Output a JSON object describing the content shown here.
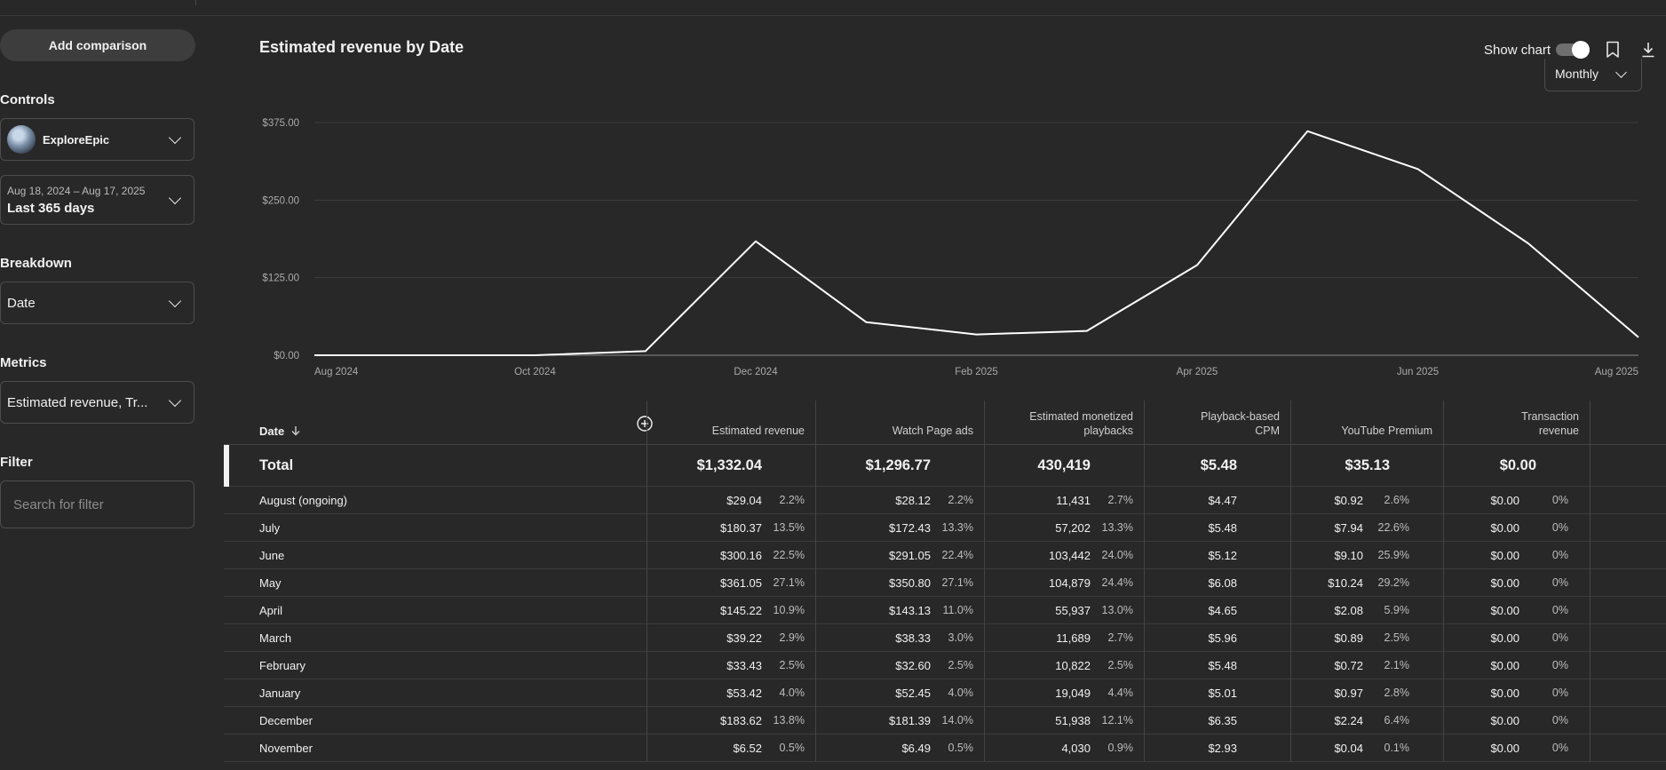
{
  "sidebar": {
    "add_comparison": "Add comparison",
    "controls_title": "Controls",
    "channel_name": "ExploreEpic",
    "date_range_sub": "Aug 18, 2024 – Aug 17, 2025",
    "date_range_main": "Last 365 days",
    "breakdown_title": "Breakdown",
    "breakdown_value": "Date",
    "metrics_title": "Metrics",
    "metrics_value": "Estimated revenue, Tr...",
    "filter_title": "Filter",
    "filter_placeholder": "Search for filter"
  },
  "chart_header": {
    "title": "Estimated revenue by Date",
    "show_chart_label": "Show chart",
    "show_chart_on": true,
    "interval": "Monthly"
  },
  "chart_data": {
    "type": "line",
    "title": "Estimated revenue by Date",
    "xlabel": "",
    "ylabel": "",
    "ylim": [
      0,
      375
    ],
    "y_ticks": [
      "$0.00",
      "$125.00",
      "$250.00",
      "$375.00"
    ],
    "y_tick_values": [
      0,
      125,
      250,
      375
    ],
    "x_tick_labels": [
      "Aug 2024",
      "Oct 2024",
      "Dec 2024",
      "Feb 2025",
      "Apr 2025",
      "Jun 2025",
      "Aug 2025"
    ],
    "x": [
      "2024-08",
      "2024-09",
      "2024-10",
      "2024-11",
      "2024-12",
      "2025-01",
      "2025-02",
      "2025-03",
      "2025-04",
      "2025-05",
      "2025-06",
      "2025-07",
      "2025-08"
    ],
    "grid": true,
    "series": [
      {
        "values": [
          0,
          0,
          0,
          6.52,
          183.62,
          53.42,
          33.43,
          39.22,
          145.22,
          361.05,
          300.16,
          180.37,
          29.04
        ]
      }
    ],
    "line_color": "#ffffff"
  },
  "table": {
    "columns": [
      {
        "key": "date",
        "label": "Date"
      },
      {
        "key": "est_revenue",
        "label": "Estimated revenue"
      },
      {
        "key": "watch_page_ads",
        "label": "Watch Page ads"
      },
      {
        "key": "monetized_playbacks",
        "label": "Estimated monetized playbacks"
      },
      {
        "key": "cpm",
        "label": "Playback-based CPM"
      },
      {
        "key": "youtube_premium",
        "label": "YouTube Premium"
      },
      {
        "key": "transaction_revenue",
        "label": "Transaction revenue"
      }
    ],
    "total": {
      "label": "Total",
      "est_revenue": "$1,332.04",
      "watch_page_ads": "$1,296.77",
      "monetized_playbacks": "430,419",
      "cpm": "$5.48",
      "youtube_premium": "$35.13",
      "transaction_revenue": "$0.00"
    },
    "rows": [
      {
        "date": "August (ongoing)",
        "est_revenue": "$29.04",
        "est_revenue_pct": "2.2%",
        "watch_page_ads": "$28.12",
        "watch_page_ads_pct": "2.2%",
        "monetized_playbacks": "11,431",
        "monetized_playbacks_pct": "2.7%",
        "cpm": "$4.47",
        "youtube_premium": "$0.92",
        "youtube_premium_pct": "2.6%",
        "transaction_revenue": "$0.00",
        "transaction_revenue_pct": "0%"
      },
      {
        "date": "July",
        "est_revenue": "$180.37",
        "est_revenue_pct": "13.5%",
        "watch_page_ads": "$172.43",
        "watch_page_ads_pct": "13.3%",
        "monetized_playbacks": "57,202",
        "monetized_playbacks_pct": "13.3%",
        "cpm": "$5.48",
        "youtube_premium": "$7.94",
        "youtube_premium_pct": "22.6%",
        "transaction_revenue": "$0.00",
        "transaction_revenue_pct": "0%"
      },
      {
        "date": "June",
        "est_revenue": "$300.16",
        "est_revenue_pct": "22.5%",
        "watch_page_ads": "$291.05",
        "watch_page_ads_pct": "22.4%",
        "monetized_playbacks": "103,442",
        "monetized_playbacks_pct": "24.0%",
        "cpm": "$5.12",
        "youtube_premium": "$9.10",
        "youtube_premium_pct": "25.9%",
        "transaction_revenue": "$0.00",
        "transaction_revenue_pct": "0%"
      },
      {
        "date": "May",
        "est_revenue": "$361.05",
        "est_revenue_pct": "27.1%",
        "watch_page_ads": "$350.80",
        "watch_page_ads_pct": "27.1%",
        "monetized_playbacks": "104,879",
        "monetized_playbacks_pct": "24.4%",
        "cpm": "$6.08",
        "youtube_premium": "$10.24",
        "youtube_premium_pct": "29.2%",
        "transaction_revenue": "$0.00",
        "transaction_revenue_pct": "0%"
      },
      {
        "date": "April",
        "est_revenue": "$145.22",
        "est_revenue_pct": "10.9%",
        "watch_page_ads": "$143.13",
        "watch_page_ads_pct": "11.0%",
        "monetized_playbacks": "55,937",
        "monetized_playbacks_pct": "13.0%",
        "cpm": "$4.65",
        "youtube_premium": "$2.08",
        "youtube_premium_pct": "5.9%",
        "transaction_revenue": "$0.00",
        "transaction_revenue_pct": "0%"
      },
      {
        "date": "March",
        "est_revenue": "$39.22",
        "est_revenue_pct": "2.9%",
        "watch_page_ads": "$38.33",
        "watch_page_ads_pct": "3.0%",
        "monetized_playbacks": "11,689",
        "monetized_playbacks_pct": "2.7%",
        "cpm": "$5.96",
        "youtube_premium": "$0.89",
        "youtube_premium_pct": "2.5%",
        "transaction_revenue": "$0.00",
        "transaction_revenue_pct": "0%"
      },
      {
        "date": "February",
        "est_revenue": "$33.43",
        "est_revenue_pct": "2.5%",
        "watch_page_ads": "$32.60",
        "watch_page_ads_pct": "2.5%",
        "monetized_playbacks": "10,822",
        "monetized_playbacks_pct": "2.5%",
        "cpm": "$5.48",
        "youtube_premium": "$0.72",
        "youtube_premium_pct": "2.1%",
        "transaction_revenue": "$0.00",
        "transaction_revenue_pct": "0%"
      },
      {
        "date": "January",
        "est_revenue": "$53.42",
        "est_revenue_pct": "4.0%",
        "watch_page_ads": "$52.45",
        "watch_page_ads_pct": "4.0%",
        "monetized_playbacks": "19,049",
        "monetized_playbacks_pct": "4.4%",
        "cpm": "$5.01",
        "youtube_premium": "$0.97",
        "youtube_premium_pct": "2.8%",
        "transaction_revenue": "$0.00",
        "transaction_revenue_pct": "0%"
      },
      {
        "date": "December",
        "est_revenue": "$183.62",
        "est_revenue_pct": "13.8%",
        "watch_page_ads": "$181.39",
        "watch_page_ads_pct": "14.0%",
        "monetized_playbacks": "51,938",
        "monetized_playbacks_pct": "12.1%",
        "cpm": "$6.35",
        "youtube_premium": "$2.24",
        "youtube_premium_pct": "6.4%",
        "transaction_revenue": "$0.00",
        "transaction_revenue_pct": "0%"
      },
      {
        "date": "November",
        "est_revenue": "$6.52",
        "est_revenue_pct": "0.5%",
        "watch_page_ads": "$6.49",
        "watch_page_ads_pct": "0.5%",
        "monetized_playbacks": "4,030",
        "monetized_playbacks_pct": "0.9%",
        "cpm": "$2.93",
        "youtube_premium": "$0.04",
        "youtube_premium_pct": "0.1%",
        "transaction_revenue": "$0.00",
        "transaction_revenue_pct": "0%"
      }
    ]
  }
}
